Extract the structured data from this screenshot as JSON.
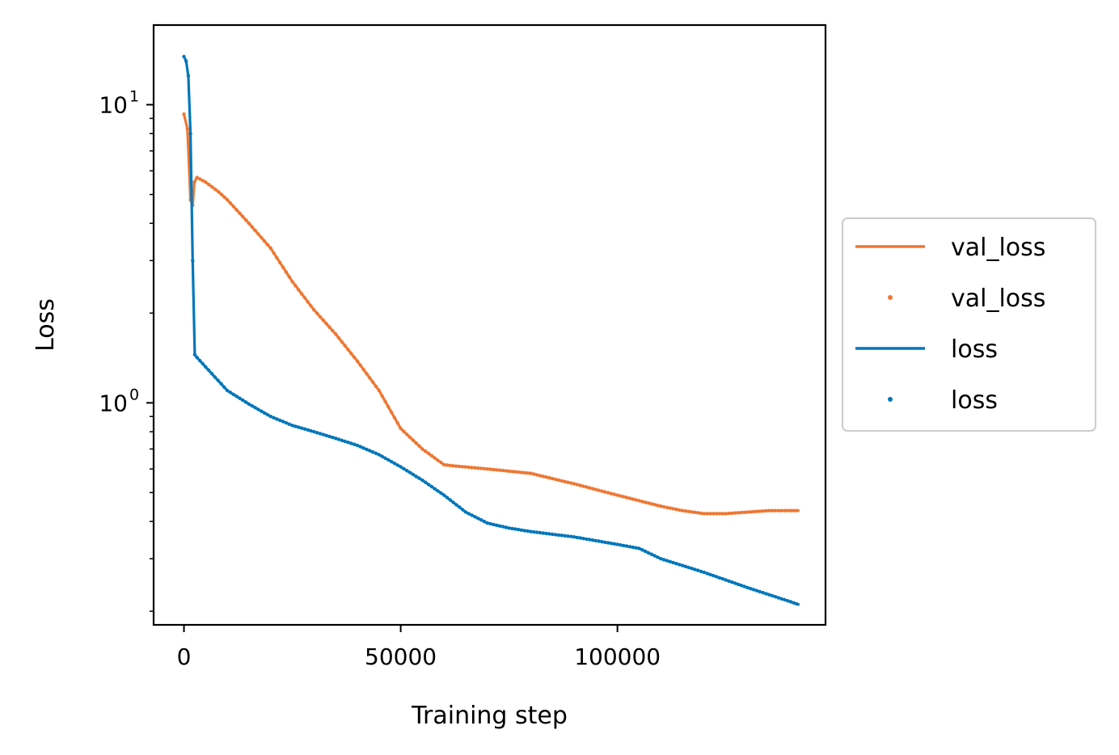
{
  "chart_data": {
    "type": "line",
    "xlabel": "Training step",
    "ylabel": "Loss",
    "x_scale": "linear",
    "y_scale": "log",
    "xlim": [
      -7000,
      148000
    ],
    "ylim": [
      0.18,
      18.5
    ],
    "x_ticks": [
      {
        "value": 0,
        "label": "0"
      },
      {
        "value": 50000,
        "label": "50000"
      },
      {
        "value": 100000,
        "label": "100000"
      }
    ],
    "y_ticks": [
      {
        "value": 1,
        "base": "10",
        "exp": "0"
      },
      {
        "value": 10,
        "base": "10",
        "exp": "1"
      }
    ],
    "grid": false,
    "legend_placement": "outside right, center",
    "legend": [
      {
        "label": "val_loss",
        "marker": "line",
        "color": "#ee7733"
      },
      {
        "label": "val_loss",
        "marker": "dot",
        "color": "#ee7733"
      },
      {
        "label": "loss",
        "marker": "line",
        "color": "#0077bb"
      },
      {
        "label": "loss",
        "marker": "dot",
        "color": "#0077bb"
      }
    ],
    "series": [
      {
        "name": "val_loss",
        "color": "#ee7733",
        "points": [
          [
            0,
            9.3
          ],
          [
            800,
            8.3
          ],
          [
            1500,
            4.8
          ],
          [
            2000,
            4.6
          ],
          [
            2400,
            5.5
          ],
          [
            3000,
            5.7
          ],
          [
            5000,
            5.5
          ],
          [
            8000,
            5.1
          ],
          [
            10000,
            4.8
          ],
          [
            15000,
            4.0
          ],
          [
            20000,
            3.3
          ],
          [
            25000,
            2.55
          ],
          [
            30000,
            2.05
          ],
          [
            35000,
            1.7
          ],
          [
            40000,
            1.38
          ],
          [
            45000,
            1.1
          ],
          [
            50000,
            0.82
          ],
          [
            55000,
            0.7
          ],
          [
            60000,
            0.62
          ],
          [
            62000,
            0.615
          ],
          [
            70000,
            0.6
          ],
          [
            80000,
            0.58
          ],
          [
            90000,
            0.535
          ],
          [
            100000,
            0.49
          ],
          [
            110000,
            0.45
          ],
          [
            115000,
            0.435
          ],
          [
            120000,
            0.425
          ],
          [
            125000,
            0.425
          ],
          [
            130000,
            0.43
          ],
          [
            135000,
            0.435
          ],
          [
            140000,
            0.435
          ],
          [
            142000,
            0.435
          ]
        ]
      },
      {
        "name": "loss",
        "color": "#0077bb",
        "points": [
          [
            0,
            14.5
          ],
          [
            500,
            14.0
          ],
          [
            1000,
            12.5
          ],
          [
            1500,
            8.0
          ],
          [
            2000,
            3.0
          ],
          [
            2500,
            1.45
          ],
          [
            3000,
            1.42
          ],
          [
            5000,
            1.32
          ],
          [
            10000,
            1.1
          ],
          [
            15000,
            0.99
          ],
          [
            20000,
            0.9
          ],
          [
            25000,
            0.84
          ],
          [
            30000,
            0.8
          ],
          [
            35000,
            0.76
          ],
          [
            40000,
            0.72
          ],
          [
            45000,
            0.67
          ],
          [
            50000,
            0.61
          ],
          [
            55000,
            0.55
          ],
          [
            60000,
            0.49
          ],
          [
            65000,
            0.43
          ],
          [
            70000,
            0.395
          ],
          [
            75000,
            0.38
          ],
          [
            80000,
            0.37
          ],
          [
            90000,
            0.355
          ],
          [
            100000,
            0.335
          ],
          [
            105000,
            0.325
          ],
          [
            110000,
            0.3
          ],
          [
            120000,
            0.27
          ],
          [
            130000,
            0.24
          ],
          [
            140000,
            0.215
          ],
          [
            142000,
            0.21
          ]
        ]
      }
    ]
  }
}
